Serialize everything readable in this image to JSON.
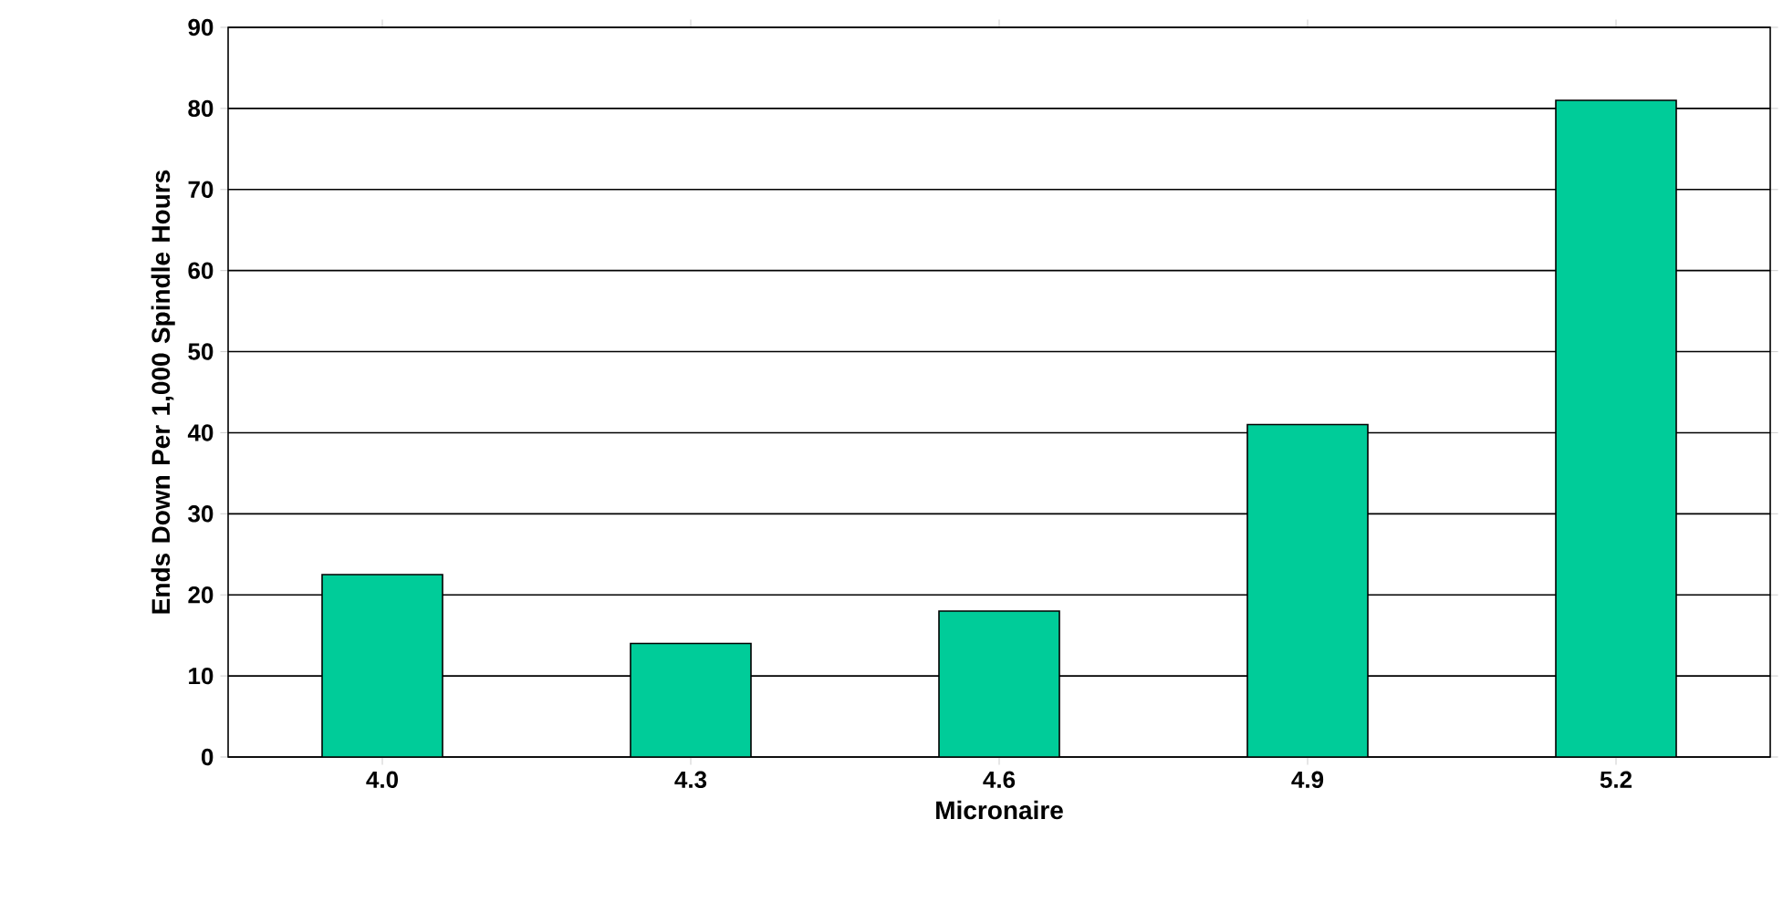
{
  "chart_data": {
    "type": "bar",
    "xlabel": "Micronaire",
    "ylabel": "Ends Down Per 1,000 Spindle Hours",
    "categories": [
      "4.0",
      "4.3",
      "4.6",
      "4.9",
      "5.2"
    ],
    "values": [
      22.5,
      14,
      18,
      41,
      81
    ],
    "color": "#00cc99",
    "ylim": [
      0,
      90
    ],
    "yticks": [
      0,
      10,
      20,
      30,
      40,
      50,
      60,
      70,
      80,
      90
    ],
    "grid": "y"
  }
}
